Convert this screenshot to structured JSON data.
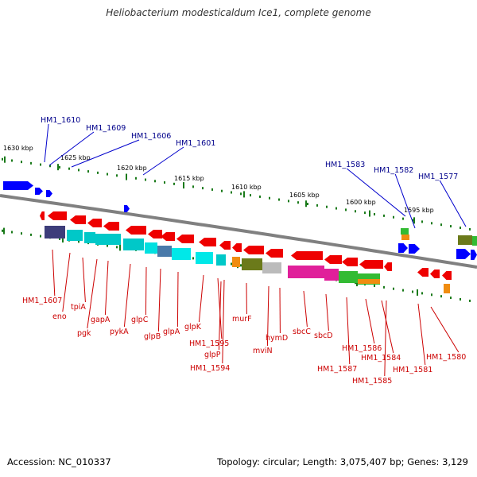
{
  "title": "Heliobacterium modesticaldum Ice1, complete genome",
  "footer": {
    "accession": "Accession: NC_010337",
    "topology": "Topology: circular; Length: 3,075,407 bp; Genes: 3,129"
  },
  "ruler_labels": [
    "1630 kbp",
    "1625 kbp",
    "1620 kbp",
    "1615 kbp",
    "1610 kbp",
    "1605 kbp",
    "1600 kbp",
    "1595 kbp"
  ],
  "gene_labels_top": [
    "HM1_1610",
    "HM1_1609",
    "HM1_1606",
    "HM1_1601",
    "HM1_1583",
    "HM1_1582",
    "HM1_1577"
  ],
  "gene_labels_bottom": [
    "HM1_1607",
    "eno",
    "tpiA",
    "pgk",
    "gapA",
    "pykA",
    "glpC",
    "glpB",
    "glpA",
    "glpK",
    "HM1_1595",
    "glpP",
    "HM1_1594",
    "murF",
    "mviN",
    "hymD",
    "sbcC",
    "sbcD",
    "HM1_1587",
    "HM1_1586",
    "HM1_1584",
    "HM1_1585",
    "HM1_1581",
    "HM1_1580"
  ],
  "colors": {
    "forward_gene": "#0000ff",
    "reverse_gene": "#ee0000",
    "backbone": "#808080",
    "tick": "#1a7a1a",
    "label_top": "#00008b",
    "label_bottom": "#cc0000",
    "cog_cyan": "#00c8c8",
    "cog_dark": "#3d3d7a",
    "cog_magenta": "#e0209a",
    "cog_green": "#33bb33",
    "cog_olive": "#6b7a1a",
    "cog_orange": "#f08c10",
    "cog_gray": "#bbbbbb"
  }
}
